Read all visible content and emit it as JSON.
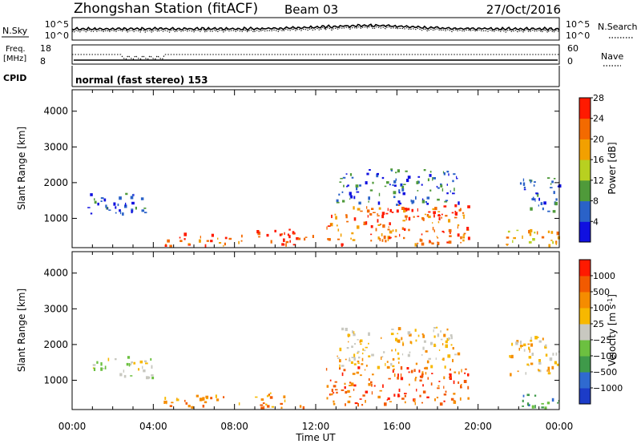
{
  "header": {
    "station": "Zhongshan Station (fitACF)",
    "beam": "Beam 03",
    "date": "27/Oct/2016"
  },
  "noise_panel": {
    "left_label": "N.Sky",
    "left_ticks": [
      "10^5",
      "10^0"
    ],
    "right_ticks": [
      "10^5",
      "10^0"
    ],
    "right_label": "N.Search"
  },
  "freq_panel": {
    "left_label_top": "Freq.",
    "left_label_bottom": "[MHz]",
    "left_ticks": [
      "18",
      "8"
    ],
    "right_ticks": [
      "60",
      "0"
    ],
    "right_label": "Nave"
  },
  "cpid_panel": {
    "label": "CPID",
    "mode_text": "normal (fast stereo) 153"
  },
  "chart_data": [
    {
      "type": "heatmap",
      "name": "power",
      "ylabel": "Slant Range [km]",
      "yticks": [
        "1000",
        "2000",
        "3000",
        "4000"
      ],
      "ytick_values": [
        1000,
        2000,
        3000,
        4000
      ],
      "ylim": [
        180,
        4600
      ],
      "colorbar_label": "Power [dB]",
      "colorbar_ticks": [
        "4",
        "8",
        "12",
        "16",
        "20",
        "24",
        "28"
      ],
      "colors": [
        "#1010e0",
        "#2a62c8",
        "#4f9a3a",
        "#b8d020",
        "#f2a000",
        "#f36a00",
        "#ff1a00"
      ],
      "bands": [
        {
          "x0": 0.5,
          "x1": 3.8,
          "y0": 1150,
          "y1": 1750,
          "level": 1
        },
        {
          "x0": 4.5,
          "x1": 8.5,
          "y0": 250,
          "y1": 600,
          "level": 5
        },
        {
          "x0": 9.0,
          "x1": 12.0,
          "y0": 250,
          "y1": 750,
          "level": 6
        },
        {
          "x0": 12.5,
          "x1": 19.5,
          "y0": 300,
          "y1": 1400,
          "level": 5
        },
        {
          "x0": 13.0,
          "x1": 19.0,
          "y0": 1400,
          "y1": 2400,
          "level": 1
        },
        {
          "x0": 15.0,
          "x1": 19.0,
          "y0": 1000,
          "y1": 1300,
          "level": 6
        },
        {
          "x0": 21.0,
          "x1": 24.0,
          "y0": 250,
          "y1": 700,
          "level": 4
        },
        {
          "x0": 22.0,
          "x1": 24.0,
          "y0": 1200,
          "y1": 2200,
          "level": 1
        }
      ]
    },
    {
      "type": "heatmap",
      "name": "velocity",
      "ylabel": "Slant Range [km]",
      "yticks": [
        "1000",
        "2000",
        "3000",
        "4000"
      ],
      "ytick_values": [
        1000,
        2000,
        3000,
        4000
      ],
      "ylim": [
        180,
        4600
      ],
      "colorbar_label": "Velocity [m s",
      "colorbar_unit_superscript": "-1",
      "colorbar_label_end": "]",
      "colorbar_ticks": [
        "1000",
        "500",
        "100",
        "25",
        "−25",
        "−100",
        "−500",
        "−1000"
      ],
      "colors": [
        "#1c3cc8",
        "#2f6ad0",
        "#3f9a4a",
        "#6cc040",
        "#c8c8c0",
        "#f7b800",
        "#f58c00",
        "#f25a00",
        "#ff1a00"
      ],
      "bands": [
        {
          "x0": 1.0,
          "x1": 4.0,
          "y0": 1100,
          "y1": 1700,
          "level": 4
        },
        {
          "x0": 4.5,
          "x1": 8.5,
          "y0": 250,
          "y1": 600,
          "level": 6
        },
        {
          "x0": 9.0,
          "x1": 11.5,
          "y0": 250,
          "y1": 700,
          "level": 6
        },
        {
          "x0": 12.5,
          "x1": 19.5,
          "y0": 300,
          "y1": 1400,
          "level": 7
        },
        {
          "x0": 13.0,
          "x1": 19.0,
          "y0": 1400,
          "y1": 2500,
          "level": 5
        },
        {
          "x0": 22.0,
          "x1": 24.0,
          "y0": 250,
          "y1": 700,
          "level": 2
        },
        {
          "x0": 21.5,
          "x1": 24.0,
          "y0": 1200,
          "y1": 2300,
          "level": 5
        }
      ]
    }
  ],
  "x_axis": {
    "ticks": [
      "00:00",
      "04:00",
      "08:00",
      "12:00",
      "16:00",
      "20:00",
      "00:00"
    ],
    "tick_hours": [
      0,
      4,
      8,
      12,
      16,
      20,
      24
    ],
    "xlim": [
      0,
      24
    ],
    "label": "Time UT"
  }
}
